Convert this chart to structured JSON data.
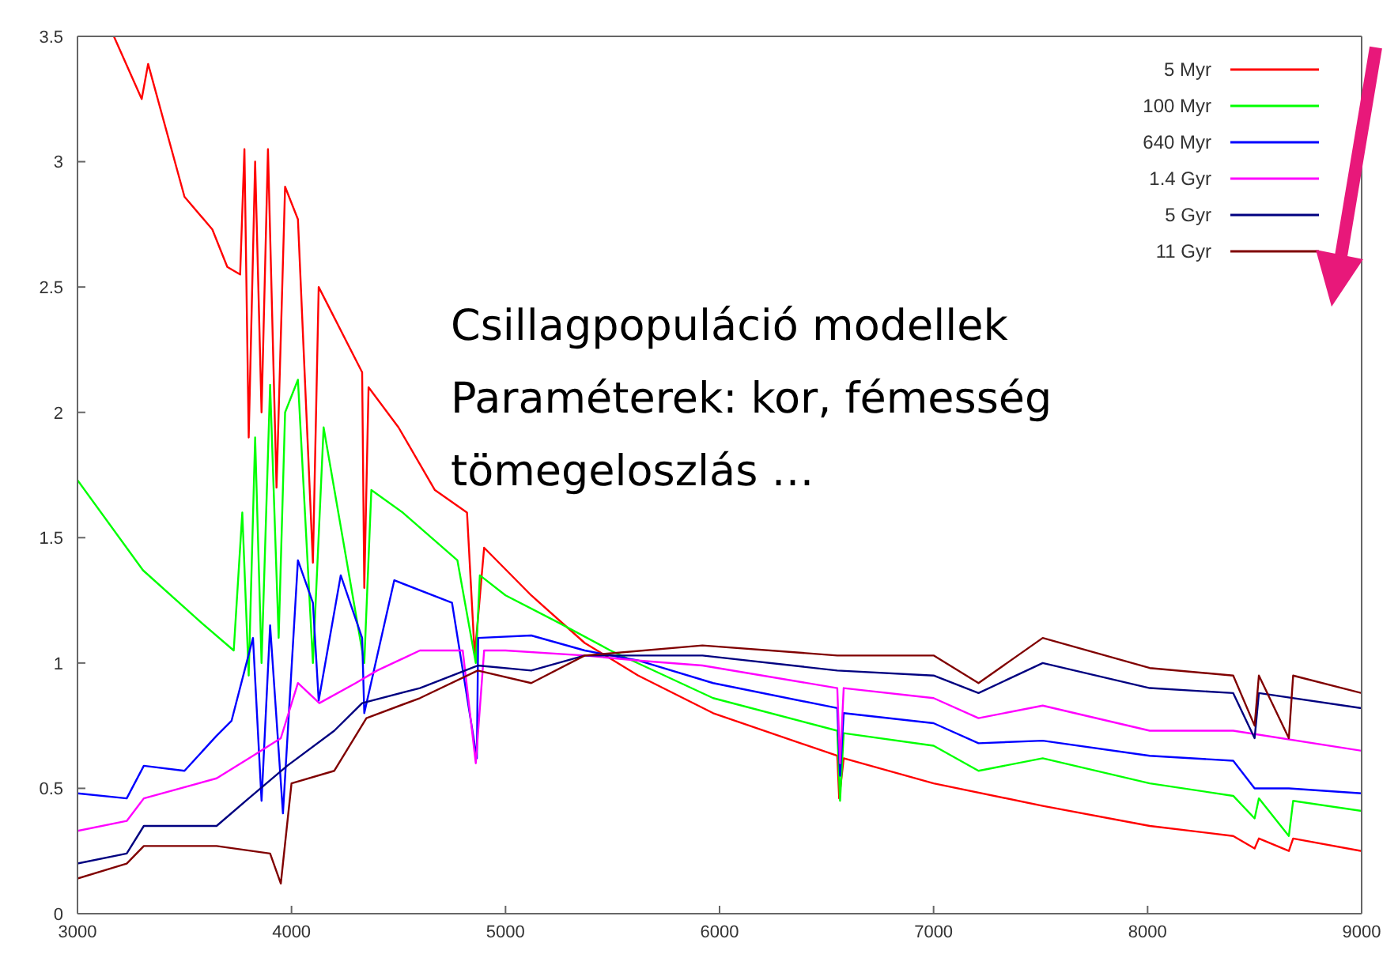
{
  "chart_data": {
    "type": "line",
    "xlim": [
      3000,
      9000
    ],
    "xticks": [
      3000,
      4000,
      5000,
      6000,
      7000,
      8000,
      9000
    ],
    "ylim": [
      0,
      3.5
    ],
    "yticks": [
      0,
      0.5,
      1,
      1.5,
      2,
      2.5,
      3,
      3.5
    ],
    "grid": false,
    "legend": "top right",
    "marker": "none",
    "line_style": "solid",
    "annotations": [
      "Csillagpopuláció modellek",
      "Paraméterek: kor, fémesség",
      "tömegeloszlás …"
    ],
    "series": [
      {
        "name": "5 Myr",
        "color": "#ff0000",
        "x": [
          3170,
          3300,
          3330,
          3500,
          3630,
          3700,
          3760,
          3780,
          3800,
          3830,
          3860,
          3890,
          3930,
          3970,
          4030,
          4100,
          4127,
          4330,
          4340,
          4360,
          4500,
          4670,
          4820,
          4856,
          4900,
          5120,
          5370,
          5620,
          5970,
          6550,
          6559,
          6580,
          7000,
          7510,
          8010,
          8400,
          8500,
          8520,
          8660,
          8680,
          9000
        ],
        "values": [
          3.5,
          3.25,
          3.39,
          2.86,
          2.73,
          2.58,
          2.55,
          3.05,
          1.9,
          3.0,
          2.0,
          3.05,
          1.7,
          2.9,
          2.77,
          1.4,
          2.5,
          2.16,
          1.3,
          2.1,
          1.94,
          1.69,
          1.6,
          1.03,
          1.46,
          1.27,
          1.08,
          0.95,
          0.8,
          0.63,
          0.46,
          0.62,
          0.52,
          0.43,
          0.35,
          0.31,
          0.26,
          0.3,
          0.25,
          0.3,
          0.25
        ]
      },
      {
        "name": "100 Myr",
        "color": "#00ff00",
        "x": [
          3000,
          3306,
          3580,
          3730,
          3770,
          3800,
          3830,
          3860,
          3900,
          3940,
          3970,
          4030,
          4100,
          4150,
          4340,
          4373,
          4520,
          4775,
          4861,
          4880,
          5000,
          5250,
          5490,
          5970,
          6550,
          6563,
          6580,
          7000,
          7210,
          7510,
          8010,
          8400,
          8500,
          8520,
          8660,
          8680,
          9000
        ],
        "values": [
          1.73,
          1.37,
          1.16,
          1.05,
          1.6,
          0.95,
          1.9,
          1.0,
          2.11,
          1.1,
          2.0,
          2.13,
          1.0,
          1.94,
          1.0,
          1.69,
          1.6,
          1.41,
          1.0,
          1.35,
          1.27,
          1.16,
          1.05,
          0.86,
          0.73,
          0.45,
          0.72,
          0.67,
          0.57,
          0.62,
          0.52,
          0.47,
          0.38,
          0.46,
          0.31,
          0.45,
          0.41
        ]
      },
      {
        "name": "640 Myr",
        "color": "#0000ff",
        "x": [
          3000,
          3230,
          3310,
          3500,
          3650,
          3720,
          3820,
          3860,
          3900,
          3960,
          4030,
          4100,
          4127,
          4230,
          4330,
          4340,
          4480,
          4750,
          4866,
          4872,
          5120,
          5370,
          5620,
          5970,
          6550,
          6563,
          6580,
          7000,
          7210,
          7510,
          8010,
          8400,
          8500,
          8660,
          9000
        ],
        "values": [
          0.48,
          0.46,
          0.59,
          0.57,
          0.71,
          0.77,
          1.1,
          0.45,
          1.15,
          0.4,
          1.41,
          1.24,
          0.85,
          1.35,
          1.1,
          0.8,
          1.33,
          1.24,
          0.62,
          1.1,
          1.11,
          1.05,
          1.01,
          0.92,
          0.82,
          0.55,
          0.8,
          0.76,
          0.68,
          0.69,
          0.63,
          0.61,
          0.5,
          0.5,
          0.48
        ]
      },
      {
        "name": "1.4 Gyr",
        "color": "#ff00ff",
        "x": [
          3000,
          3230,
          3310,
          3650,
          3820,
          3950,
          4030,
          4130,
          4300,
          4400,
          4600,
          4800,
          4861,
          4900,
          5000,
          5370,
          5620,
          5920,
          6550,
          6563,
          6580,
          7000,
          7210,
          7510,
          8010,
          8400,
          9000
        ],
        "values": [
          0.33,
          0.37,
          0.46,
          0.54,
          0.63,
          0.7,
          0.92,
          0.84,
          0.92,
          0.97,
          1.05,
          1.05,
          0.6,
          1.05,
          1.05,
          1.03,
          1.01,
          0.99,
          0.9,
          0.6,
          0.9,
          0.86,
          0.78,
          0.83,
          0.73,
          0.73,
          0.65
        ]
      },
      {
        "name": "5 Gyr",
        "color": "#000080",
        "x": [
          3000,
          3230,
          3310,
          3650,
          3800,
          3980,
          4200,
          4330,
          4600,
          4870,
          5120,
          5370,
          5920,
          6550,
          7000,
          7210,
          7510,
          8010,
          8400,
          8500,
          8520,
          9000
        ],
        "values": [
          0.2,
          0.24,
          0.35,
          0.35,
          0.46,
          0.59,
          0.73,
          0.84,
          0.9,
          0.99,
          0.97,
          1.03,
          1.03,
          0.97,
          0.95,
          0.88,
          1.0,
          0.9,
          0.88,
          0.7,
          0.88,
          0.82
        ]
      },
      {
        "name": "11 Gyr",
        "color": "#800000",
        "x": [
          3000,
          3230,
          3310,
          3650,
          3900,
          3950,
          4000,
          4200,
          4350,
          4600,
          4870,
          5120,
          5370,
          5920,
          6550,
          7000,
          7210,
          7510,
          8010,
          8400,
          8500,
          8520,
          8660,
          8680,
          9000
        ],
        "values": [
          0.14,
          0.2,
          0.27,
          0.27,
          0.24,
          0.12,
          0.52,
          0.57,
          0.78,
          0.86,
          0.97,
          0.92,
          1.03,
          1.07,
          1.03,
          1.03,
          0.92,
          1.1,
          0.98,
          0.95,
          0.75,
          0.95,
          0.7,
          0.95,
          0.88
        ]
      }
    ]
  }
}
